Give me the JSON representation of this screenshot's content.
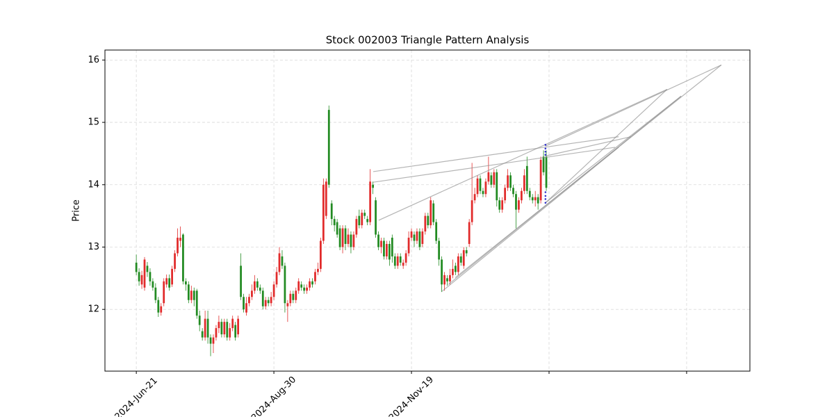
{
  "chart_data": {
    "type": "candlestick",
    "title": "Stock 002003 Triangle Pattern Analysis",
    "ylabel": "Price",
    "open": [
      12.75,
      12.6,
      12.4,
      12.35,
      12.7,
      12.6,
      12.45,
      12.35,
      12.15,
      11.95,
      12.1,
      12.4,
      12.5,
      12.4,
      12.65,
      12.9,
      13.1,
      13.2,
      12.45,
      12.4,
      12.15,
      12.3,
      12.3,
      11.9,
      11.65,
      11.55,
      11.85,
      11.55,
      11.45,
      11.55,
      11.7,
      11.8,
      11.6,
      11.8,
      11.55,
      11.7,
      11.75,
      11.6,
      12.7,
      12.2,
      11.95,
      12.1,
      12.2,
      12.3,
      12.45,
      12.35,
      12.3,
      12.05,
      12.15,
      12.1,
      12.2,
      12.4,
      12.6,
      12.85,
      12.7,
      12.05,
      12.1,
      12.25,
      12.15,
      12.3,
      12.4,
      12.35,
      12.3,
      12.35,
      12.45,
      12.45,
      12.6,
      12.65,
      13.1,
      13.5,
      15.2,
      13.7,
      13.45,
      13.4,
      13.3,
      13.0,
      13.3,
      13.05,
      13.2,
      13.0,
      13.2,
      13.5,
      13.35,
      13.55,
      13.45,
      13.4,
      14.0,
      13.75,
      13.2,
      13.0,
      13.1,
      12.85,
      13.05,
      13.15,
      12.85,
      12.7,
      12.85,
      12.7,
      12.75,
      12.9,
      13.15,
      13.2,
      13.1,
      13.25,
      13.05,
      13.25,
      13.5,
      13.35,
      13.7,
      13.4,
      13.1,
      12.8,
      12.4,
      12.5,
      12.45,
      12.55,
      12.7,
      12.6,
      12.85,
      12.7,
      12.95,
      13.05,
      13.4,
      13.75,
      13.85,
      14.1,
      13.9,
      13.85,
      14.05,
      14.15,
      14.0,
      14.2,
      13.75,
      13.6,
      13.75,
      13.95,
      14.15,
      13.95,
      13.85,
      13.6,
      13.75,
      13.9,
      14.3,
      13.9,
      13.8,
      13.75,
      13.8,
      13.75,
      14.45,
      14.45
    ],
    "high": [
      12.88,
      12.66,
      12.62,
      12.84,
      12.76,
      12.66,
      12.5,
      12.42,
      12.2,
      12.1,
      12.5,
      12.56,
      12.56,
      12.7,
      12.95,
      13.3,
      13.33,
      13.22,
      12.5,
      12.45,
      12.38,
      12.35,
      12.33,
      11.98,
      11.7,
      11.98,
      11.98,
      11.6,
      11.6,
      11.75,
      11.9,
      11.85,
      11.85,
      11.85,
      11.78,
      11.9,
      11.8,
      11.9,
      12.9,
      12.25,
      12.2,
      12.25,
      12.4,
      12.55,
      12.5,
      12.4,
      12.35,
      12.2,
      12.2,
      12.28,
      12.45,
      12.68,
      13.0,
      12.95,
      12.75,
      12.15,
      12.3,
      12.3,
      12.35,
      12.5,
      12.45,
      12.4,
      12.4,
      12.5,
      12.5,
      12.65,
      12.75,
      13.15,
      14.1,
      14.1,
      15.27,
      13.75,
      13.5,
      13.45,
      13.35,
      13.35,
      13.35,
      13.3,
      13.25,
      13.25,
      13.5,
      13.6,
      13.6,
      13.6,
      13.5,
      14.25,
      14.05,
      13.8,
      13.25,
      13.15,
      13.15,
      13.1,
      13.1,
      13.2,
      12.9,
      12.9,
      12.9,
      12.8,
      12.95,
      13.25,
      13.3,
      13.25,
      13.3,
      13.3,
      13.3,
      13.55,
      13.55,
      13.8,
      13.75,
      13.45,
      13.15,
      12.85,
      12.6,
      12.55,
      12.65,
      12.8,
      12.75,
      12.9,
      12.9,
      13.0,
      13.0,
      13.45,
      14.35,
      13.95,
      14.15,
      14.15,
      13.95,
      14.1,
      14.45,
      14.2,
      14.25,
      14.25,
      13.8,
      13.8,
      14.0,
      14.25,
      14.2,
      14.0,
      13.9,
      13.8,
      13.95,
      14.25,
      14.45,
      13.95,
      13.85,
      13.9,
      13.85,
      14.45,
      14.55,
      14.55
    ],
    "low": [
      12.55,
      12.38,
      12.33,
      12.3,
      12.52,
      12.38,
      12.3,
      12.1,
      11.88,
      11.9,
      12.05,
      12.35,
      12.3,
      12.36,
      12.6,
      12.85,
      13.0,
      12.4,
      12.3,
      12.1,
      12.1,
      12.05,
      11.85,
      11.65,
      11.5,
      11.5,
      11.45,
      11.25,
      11.3,
      11.5,
      11.62,
      11.55,
      11.55,
      11.5,
      11.5,
      11.65,
      11.5,
      11.55,
      12.15,
      11.95,
      11.9,
      12.05,
      12.15,
      12.25,
      12.3,
      12.25,
      12.0,
      12.0,
      12.05,
      12.05,
      12.15,
      12.35,
      12.55,
      12.65,
      11.95,
      11.8,
      12.05,
      12.1,
      12.1,
      12.25,
      12.3,
      12.25,
      12.25,
      12.3,
      12.35,
      12.4,
      12.55,
      12.6,
      13.05,
      13.45,
      13.95,
      13.35,
      13.25,
      13.15,
      12.95,
      12.9,
      12.95,
      13.0,
      12.9,
      12.95,
      13.15,
      13.3,
      13.3,
      13.45,
      13.35,
      13.35,
      13.85,
      13.15,
      12.95,
      12.9,
      12.8,
      12.8,
      12.7,
      12.75,
      12.65,
      12.65,
      12.7,
      12.65,
      12.7,
      12.85,
      13.1,
      13.0,
      13.05,
      12.95,
      13.0,
      13.2,
      13.3,
      13.3,
      13.35,
      13.05,
      12.7,
      12.28,
      12.3,
      12.38,
      12.4,
      12.5,
      12.55,
      12.55,
      12.7,
      12.65,
      12.85,
      13.0,
      13.35,
      13.7,
      13.8,
      13.85,
      13.8,
      13.8,
      14.0,
      13.95,
      13.95,
      13.65,
      13.55,
      13.55,
      13.7,
      13.9,
      13.9,
      13.8,
      13.3,
      13.55,
      13.7,
      13.85,
      13.85,
      13.75,
      13.7,
      13.65,
      13.6,
      13.7,
      14.15,
      13.9
    ],
    "close": [
      12.6,
      12.45,
      12.55,
      12.8,
      12.6,
      12.45,
      12.35,
      12.15,
      11.95,
      12.05,
      12.45,
      12.5,
      12.35,
      12.65,
      12.9,
      13.15,
      13.15,
      12.45,
      12.4,
      12.15,
      12.3,
      12.15,
      11.9,
      11.75,
      11.55,
      11.85,
      11.55,
      11.45,
      11.55,
      11.7,
      11.8,
      11.6,
      11.8,
      11.55,
      11.7,
      11.85,
      11.55,
      11.85,
      12.2,
      12.0,
      12.1,
      12.2,
      12.3,
      12.45,
      12.35,
      12.3,
      12.05,
      12.15,
      12.1,
      12.2,
      12.4,
      12.6,
      12.9,
      12.7,
      12.1,
      12.1,
      12.25,
      12.15,
      12.3,
      12.45,
      12.35,
      12.3,
      12.35,
      12.45,
      12.4,
      12.6,
      12.65,
      13.1,
      14.0,
      14.05,
      14.0,
      13.45,
      13.35,
      13.2,
      13.0,
      13.3,
      13.05,
      13.2,
      13.0,
      13.2,
      13.45,
      13.35,
      13.55,
      13.5,
      13.4,
      14.05,
      13.95,
      13.2,
      13.0,
      13.1,
      12.85,
      13.05,
      12.8,
      12.85,
      12.7,
      12.85,
      12.75,
      12.75,
      12.9,
      13.15,
      13.25,
      13.1,
      13.25,
      13.0,
      13.25,
      13.5,
      13.35,
      13.75,
      13.4,
      13.1,
      12.8,
      12.4,
      12.55,
      12.45,
      12.55,
      12.65,
      12.6,
      12.85,
      12.75,
      12.95,
      12.9,
      13.4,
      13.75,
      13.85,
      14.1,
      13.9,
      13.85,
      14.05,
      14.2,
      14.0,
      14.2,
      13.75,
      13.6,
      13.75,
      13.95,
      14.15,
      13.95,
      13.85,
      13.6,
      13.75,
      13.9,
      14.15,
      13.9,
      13.8,
      13.75,
      13.8,
      13.7,
      14.4,
      14.2,
      13.95
    ],
    "up_color": "#e12b2b",
    "down_color": "#228b22",
    "xlim": [
      -11.4,
      223
    ],
    "ylim": [
      11.01,
      16.16
    ],
    "xticks": [
      {
        "value": 0,
        "label": "2024-Jun-21"
      },
      {
        "value": 50,
        "label": "2024-Aug-30"
      },
      {
        "value": 100,
        "label": "2024-Nov-19"
      },
      {
        "value": 150,
        "label": null
      },
      {
        "value": 200,
        "label": null
      }
    ],
    "yticks": [
      12,
      13,
      14,
      15,
      16
    ],
    "grid": true,
    "trend_lines": {
      "color": "#8c8c8c",
      "lines": [
        {
          "x": [
            86.1,
            175.3
          ],
          "y": [
            14.21,
            14.77
          ]
        },
        {
          "x": [
            86.1,
            174.0
          ],
          "y": [
            14.04,
            14.6
          ]
        },
        {
          "x": [
            88.1,
            192.9
          ],
          "y": [
            13.43,
            15.53
          ]
        },
        {
          "x": [
            148.7,
            198.0
          ],
          "y": [
            13.71,
            15.42
          ]
        },
        {
          "x": [
            148.7,
            192.9
          ],
          "y": [
            13.71,
            15.53
          ]
        },
        {
          "x": [
            111.1,
            175.3
          ],
          "y": [
            12.29,
            14.6
          ]
        },
        {
          "x": [
            113.4,
            198.0
          ],
          "y": [
            12.4,
            15.42
          ]
        },
        {
          "x": [
            115.9,
            212.6
          ],
          "y": [
            12.51,
            15.92
          ]
        },
        {
          "x": [
            148.7,
            212.6
          ],
          "y": [
            14.62,
            15.92
          ]
        },
        {
          "x": [
            148.7,
            179.8
          ],
          "y": [
            14.46,
            14.77
          ]
        }
      ]
    },
    "markers": {
      "color": "#3333cc",
      "x": [
        148.7,
        148.7,
        148.7,
        148.7,
        148.7,
        148.7,
        148.7,
        148.7
      ],
      "y": [
        14.64,
        14.58,
        14.53,
        14.48,
        13.88,
        13.82,
        13.77,
        13.71
      ]
    }
  }
}
